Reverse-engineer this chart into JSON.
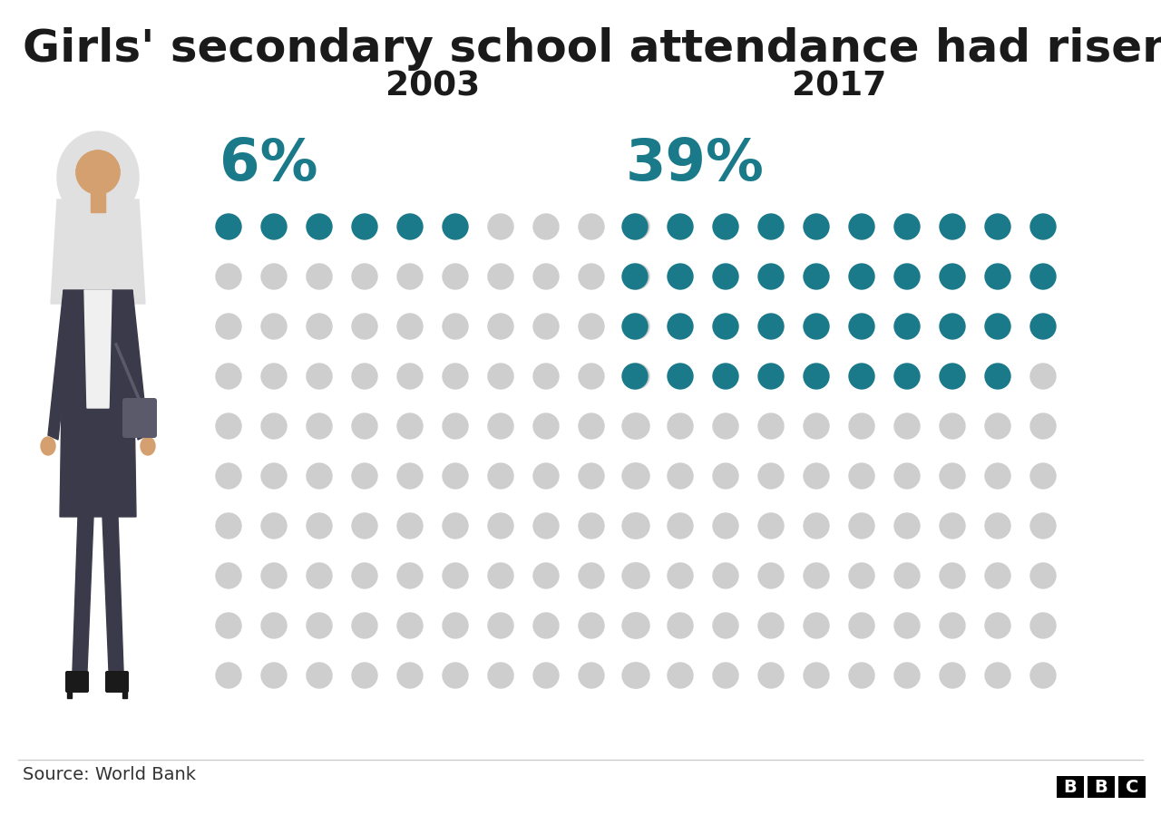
{
  "title": "Girls' secondary school attendance had risen",
  "title_fontsize": 36,
  "year_2003": "2003",
  "year_2017": "2017",
  "pct_2003": 6,
  "pct_2017": 39,
  "label_2003": "6%",
  "label_2017": "39%",
  "teal_color": "#1a7a8a",
  "gray_color": "#cecece",
  "black_color": "#1a1a1a",
  "background": "#ffffff",
  "source_text": "Source: World Bank",
  "rows": 10,
  "cols": 10,
  "footer_line_color": "#cccccc",
  "figure_dark": "#3a3a4a",
  "figure_skin": "#d4a070",
  "figure_scarf": "#e0e0e0",
  "figure_bag": "#5a5a6a"
}
